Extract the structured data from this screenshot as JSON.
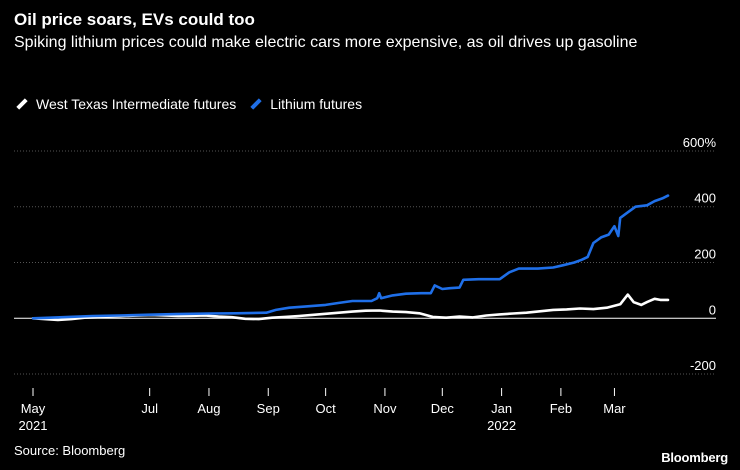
{
  "title": "Oil price soars, EVs could too",
  "subtitle": "Spiking lithium prices could make electric cars more expensive, as oil drives up gasoline",
  "source": "Source: Bloomberg",
  "logo": "Bloomberg",
  "colors": {
    "wti": "#ffffff",
    "lithium": "#1f6fe8",
    "grid": "#555555",
    "zero_line": "#ffffff"
  },
  "chart_data": {
    "type": "line",
    "ylabel": "",
    "xlabel": "",
    "ylim": [
      -250,
      650
    ],
    "yticks": [
      {
        "value": 600,
        "label": "600%"
      },
      {
        "value": 400,
        "label": "400"
      },
      {
        "value": 200,
        "label": "200"
      },
      {
        "value": 0,
        "label": "0"
      },
      {
        "value": -200,
        "label": "-200"
      }
    ],
    "grid": true,
    "legend_position": "top-left",
    "xlim": [
      "2021-05-01",
      "2022-04-01"
    ],
    "xticks": [
      {
        "date": "2021-05-01",
        "label": "May",
        "sublabel": "2021"
      },
      {
        "date": "2021-07-01",
        "label": "Jul",
        "sublabel": ""
      },
      {
        "date": "2021-08-01",
        "label": "Aug",
        "sublabel": ""
      },
      {
        "date": "2021-09-01",
        "label": "Sep",
        "sublabel": ""
      },
      {
        "date": "2021-10-01",
        "label": "Oct",
        "sublabel": ""
      },
      {
        "date": "2021-11-01",
        "label": "Nov",
        "sublabel": ""
      },
      {
        "date": "2021-12-01",
        "label": "Dec",
        "sublabel": ""
      },
      {
        "date": "2022-01-01",
        "label": "Jan",
        "sublabel": "2022"
      },
      {
        "date": "2022-02-01",
        "label": "Feb",
        "sublabel": ""
      },
      {
        "date": "2022-03-01",
        "label": "Mar",
        "sublabel": ""
      }
    ],
    "series": [
      {
        "name": "West Texas Intermediate futures",
        "color": "#ffffff",
        "points": [
          [
            "2021-05-01",
            0
          ],
          [
            "2021-05-07",
            -3
          ],
          [
            "2021-05-14",
            -6
          ],
          [
            "2021-05-21",
            -3
          ],
          [
            "2021-05-28",
            2
          ],
          [
            "2021-06-04",
            4
          ],
          [
            "2021-06-11",
            6
          ],
          [
            "2021-06-18",
            8
          ],
          [
            "2021-06-25",
            10
          ],
          [
            "2021-07-02",
            12
          ],
          [
            "2021-07-09",
            10
          ],
          [
            "2021-07-16",
            8
          ],
          [
            "2021-07-23",
            9
          ],
          [
            "2021-07-30",
            10
          ],
          [
            "2021-08-06",
            6
          ],
          [
            "2021-08-13",
            4
          ],
          [
            "2021-08-20",
            -2
          ],
          [
            "2021-08-27",
            -3
          ],
          [
            "2021-09-03",
            2
          ],
          [
            "2021-09-10",
            5
          ],
          [
            "2021-09-17",
            8
          ],
          [
            "2021-09-24",
            12
          ],
          [
            "2021-10-01",
            16
          ],
          [
            "2021-10-08",
            20
          ],
          [
            "2021-10-15",
            24
          ],
          [
            "2021-10-22",
            27
          ],
          [
            "2021-10-29",
            28
          ],
          [
            "2021-11-05",
            24
          ],
          [
            "2021-11-12",
            22
          ],
          [
            "2021-11-19",
            18
          ],
          [
            "2021-11-26",
            5
          ],
          [
            "2021-12-03",
            2
          ],
          [
            "2021-12-10",
            6
          ],
          [
            "2021-12-17",
            3
          ],
          [
            "2021-12-24",
            10
          ],
          [
            "2021-12-31",
            14
          ],
          [
            "2022-01-07",
            17
          ],
          [
            "2022-01-14",
            20
          ],
          [
            "2022-01-21",
            25
          ],
          [
            "2022-01-28",
            30
          ],
          [
            "2022-02-04",
            32
          ],
          [
            "2022-02-11",
            35
          ],
          [
            "2022-02-18",
            33
          ],
          [
            "2022-02-25",
            38
          ],
          [
            "2022-03-04",
            50
          ],
          [
            "2022-03-08",
            85
          ],
          [
            "2022-03-11",
            58
          ],
          [
            "2022-03-15",
            48
          ],
          [
            "2022-03-18",
            58
          ],
          [
            "2022-03-22",
            70
          ],
          [
            "2022-03-25",
            66
          ],
          [
            "2022-03-29",
            66
          ]
        ]
      },
      {
        "name": "Lithium futures",
        "color": "#1f6fe8",
        "points": [
          [
            "2021-05-01",
            0
          ],
          [
            "2021-05-10",
            2
          ],
          [
            "2021-05-20",
            5
          ],
          [
            "2021-06-01",
            8
          ],
          [
            "2021-06-15",
            10
          ],
          [
            "2021-07-01",
            13
          ],
          [
            "2021-07-15",
            15
          ],
          [
            "2021-08-01",
            17
          ],
          [
            "2021-08-15",
            18
          ],
          [
            "2021-08-31",
            20
          ],
          [
            "2021-09-05",
            30
          ],
          [
            "2021-09-12",
            38
          ],
          [
            "2021-09-20",
            42
          ],
          [
            "2021-10-01",
            48
          ],
          [
            "2021-10-08",
            55
          ],
          [
            "2021-10-15",
            62
          ],
          [
            "2021-10-25",
            62
          ],
          [
            "2021-10-28",
            72
          ],
          [
            "2021-10-29",
            90
          ],
          [
            "2021-10-30",
            72
          ],
          [
            "2021-11-05",
            82
          ],
          [
            "2021-11-12",
            88
          ],
          [
            "2021-11-20",
            90
          ],
          [
            "2021-11-25",
            90
          ],
          [
            "2021-11-27",
            118
          ],
          [
            "2021-12-01",
            105
          ],
          [
            "2021-12-05",
            108
          ],
          [
            "2021-12-10",
            110
          ],
          [
            "2021-12-12",
            138
          ],
          [
            "2021-12-20",
            140
          ],
          [
            "2021-12-31",
            140
          ],
          [
            "2022-01-05",
            165
          ],
          [
            "2022-01-10",
            178
          ],
          [
            "2022-01-20",
            178
          ],
          [
            "2022-01-28",
            182
          ],
          [
            "2022-02-02",
            190
          ],
          [
            "2022-02-08",
            200
          ],
          [
            "2022-02-12",
            210
          ],
          [
            "2022-02-15",
            220
          ],
          [
            "2022-02-18",
            270
          ],
          [
            "2022-02-22",
            290
          ],
          [
            "2022-02-26",
            300
          ],
          [
            "2022-03-01",
            330
          ],
          [
            "2022-03-03",
            295
          ],
          [
            "2022-03-04",
            360
          ],
          [
            "2022-03-08",
            380
          ],
          [
            "2022-03-12",
            400
          ],
          [
            "2022-03-18",
            405
          ],
          [
            "2022-03-22",
            420
          ],
          [
            "2022-03-26",
            430
          ],
          [
            "2022-03-29",
            440
          ]
        ]
      }
    ]
  }
}
